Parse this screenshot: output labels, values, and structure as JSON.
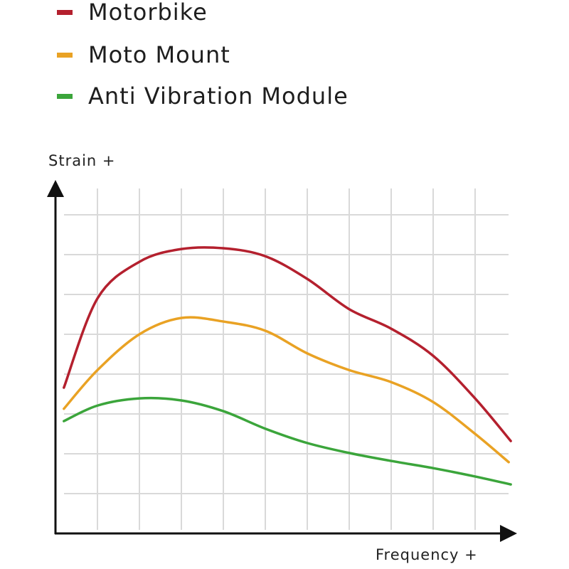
{
  "chart_data": {
    "type": "line",
    "title": "",
    "xlabel": "Frequency +",
    "ylabel": "Strain +",
    "xlim": [
      0,
      11
    ],
    "ylim": [
      0,
      8.6
    ],
    "grid": true,
    "legend_placement": "top-left",
    "series": [
      {
        "name": "Motorbike",
        "color": "#b4202e",
        "x": [
          0.2,
          1,
          2,
          3,
          4,
          5,
          6,
          7,
          8,
          9,
          10,
          10.85
        ],
        "y": [
          3.66,
          5.9,
          6.82,
          7.14,
          7.16,
          6.96,
          6.39,
          5.63,
          5.14,
          4.46,
          3.39,
          2.32
        ]
      },
      {
        "name": "Moto Mount",
        "color": "#e9a224",
        "x": [
          0.2,
          1,
          2,
          3,
          4,
          5,
          6,
          7,
          8,
          9,
          10,
          10.8
        ],
        "y": [
          3.13,
          4.1,
          5.0,
          5.41,
          5.32,
          5.09,
          4.52,
          4.1,
          3.8,
          3.3,
          2.5,
          1.79
        ]
      },
      {
        "name": "Anti Vibration Module",
        "color": "#3ba53b",
        "x": [
          0.2,
          1,
          2,
          3,
          4,
          5,
          6,
          7,
          8,
          9,
          10,
          10.85
        ],
        "y": [
          2.82,
          3.21,
          3.39,
          3.34,
          3.07,
          2.63,
          2.27,
          2.02,
          1.82,
          1.64,
          1.43,
          1.23
        ]
      }
    ]
  }
}
